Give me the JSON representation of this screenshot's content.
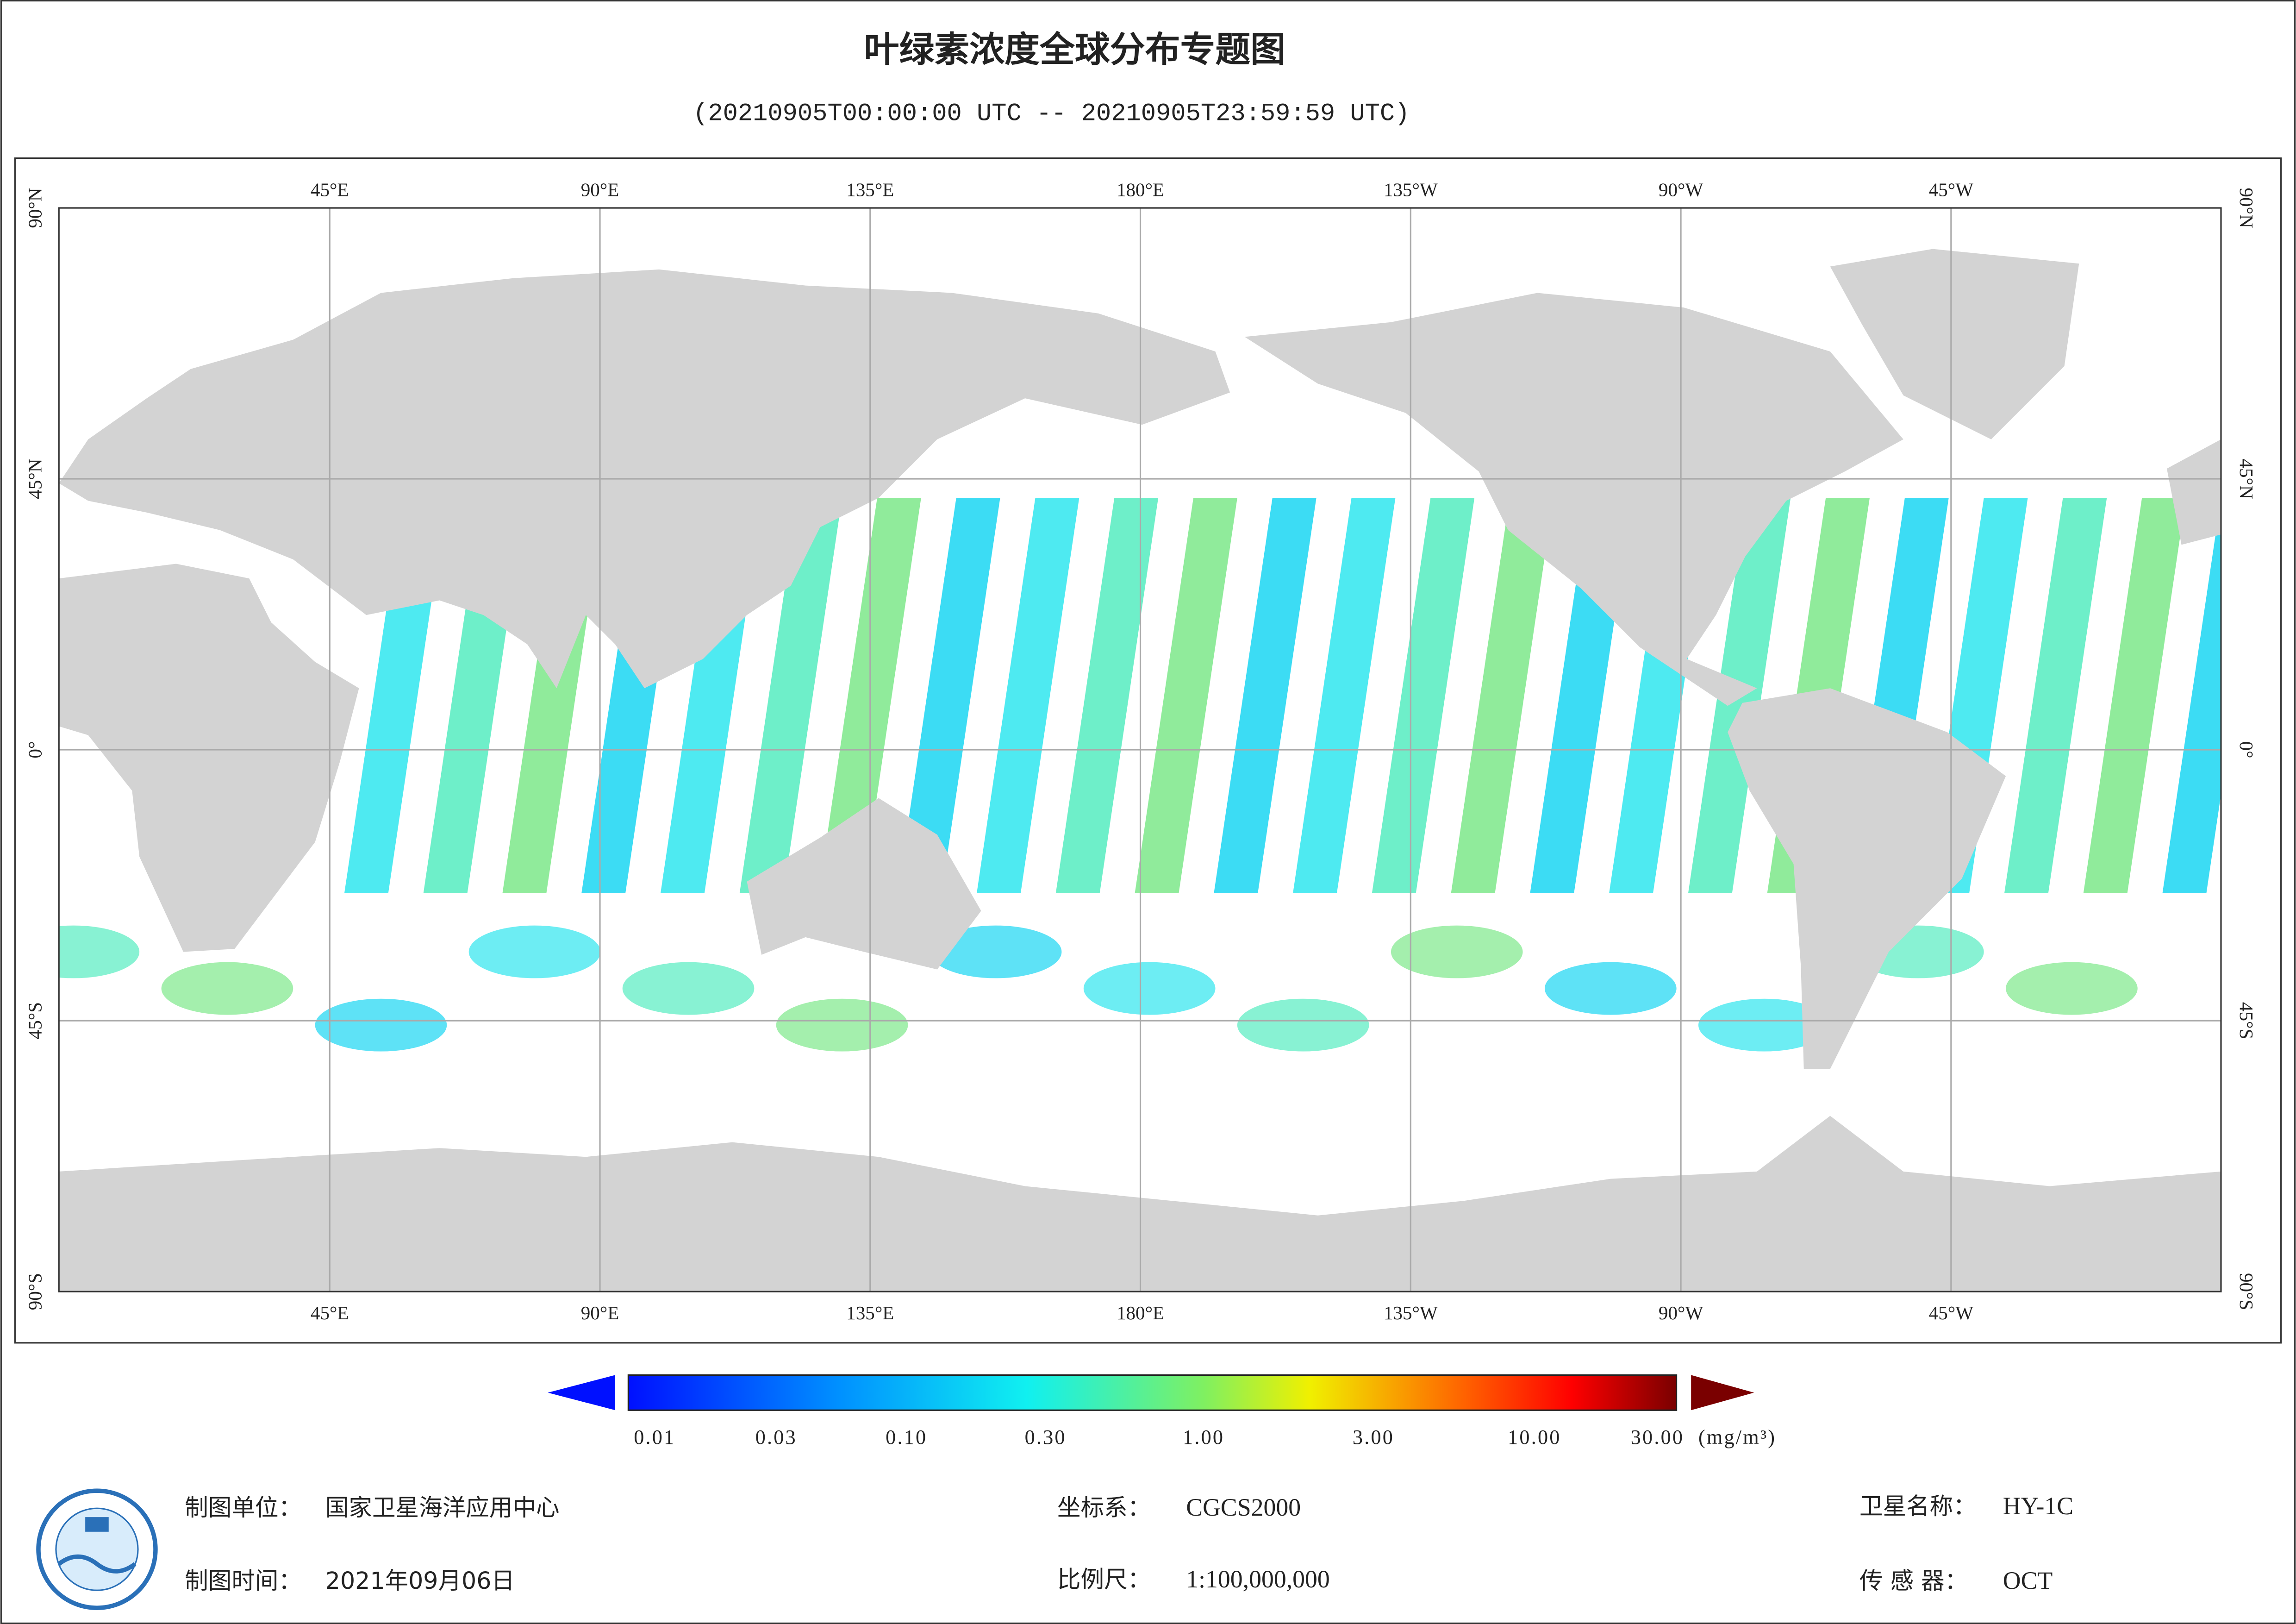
{
  "header": {
    "title": "叶绿素浓度全球分布专题图",
    "subtitle": "(20210905T00:00:00 UTC -- 20210905T23:59:59 UTC)"
  },
  "map": {
    "longitude_labels": [
      "45°E",
      "90°E",
      "135°E",
      "180°E",
      "135°W",
      "90°W",
      "45°W"
    ],
    "latitude_labels": [
      "90°N",
      "45°N",
      "0°",
      "45°S",
      "90°S"
    ]
  },
  "colorbar": {
    "tick_labels": [
      "0.01",
      "0.03",
      "0.10",
      "0.30",
      "1.00",
      "3.00",
      "10.00",
      "30.00"
    ],
    "unit": "(mg/m³)"
  },
  "footer": {
    "unit_label": "制图单位：",
    "unit": "国家卫星海洋应用中心",
    "date_label": "制图时间：",
    "date": "2021年09月06日",
    "crs_label": "坐标系：",
    "crs": "CGCS2000",
    "scale_label": "比例尺：",
    "scale": "1:100,000,000",
    "satellite_label": "卫星名称：",
    "satellite": "HY-1C",
    "sensor_label": "传 感 器：",
    "sensor": "OCT"
  }
}
